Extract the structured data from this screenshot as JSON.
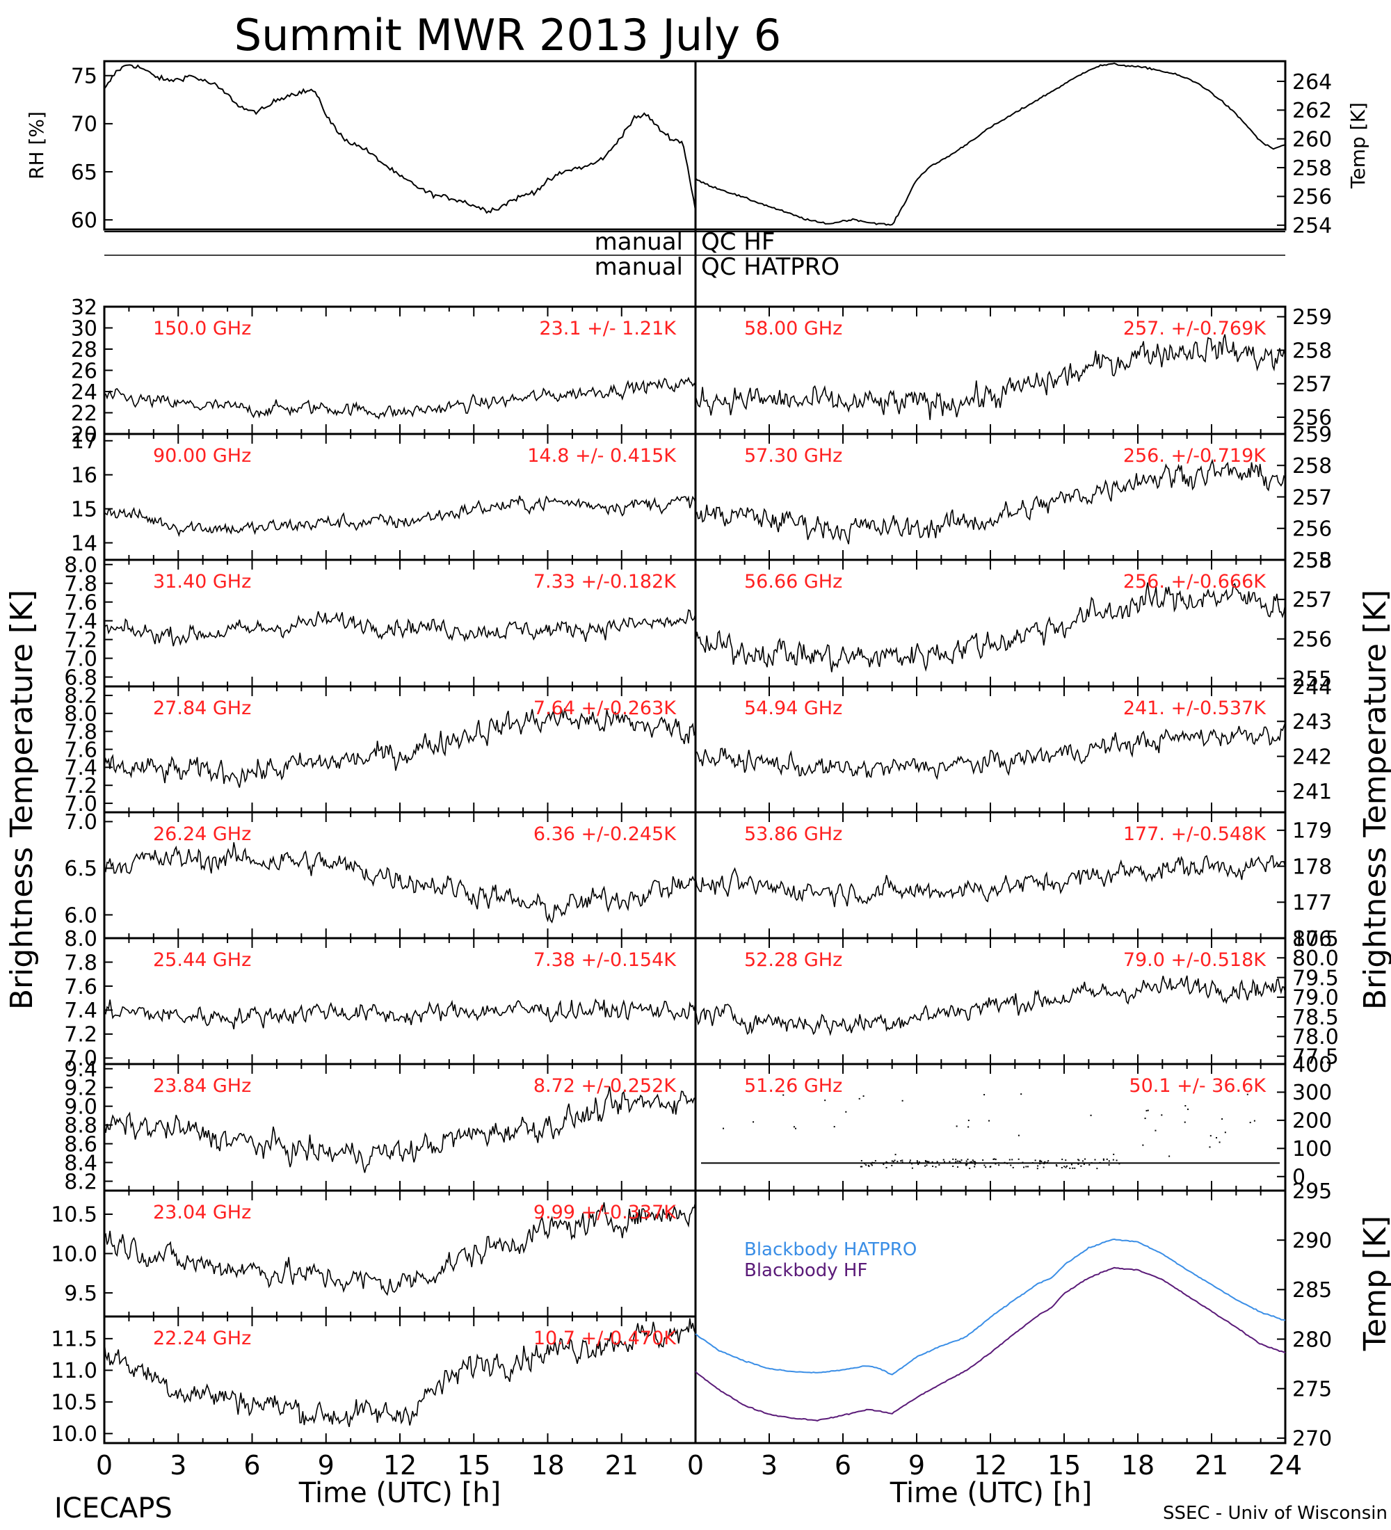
{
  "title": "Summit MWR 2013 July  6",
  "footer": {
    "left": "ICECAPS",
    "right": "SSEC - Univ of Wisconsin"
  },
  "qc_labels": {
    "left": "manual",
    "rows": [
      "QC HF",
      "QC HATPRO"
    ]
  },
  "big_labels": {
    "left": "Brightness Temperature [K]",
    "right": "Brightness Temperature [K]",
    "temp_right": "Temp [K]"
  },
  "x_axis": {
    "label": "Time (UTC) [h]",
    "ticks_left": [
      "0",
      "3",
      "6",
      "9",
      "12",
      "15",
      "18",
      "21"
    ],
    "ticks_right": [
      "0",
      "3",
      "6",
      "9",
      "12",
      "15",
      "18",
      "21",
      "24"
    ],
    "range": [
      0,
      24
    ]
  },
  "colors": {
    "annotation": "#ff2020",
    "trace": "#000000",
    "bb_hatpro": "#3a8ee6",
    "bb_hf": "#5a1a78"
  },
  "chart_data": [
    {
      "type": "line",
      "id": "rh",
      "ylabel": "RH [%]",
      "ylim": [
        59,
        76.5
      ],
      "yticks": [
        60,
        65,
        70,
        75
      ],
      "ytick_labels": [
        "60",
        "65",
        "70",
        "75"
      ],
      "x": [
        0,
        0.5,
        1,
        1.5,
        2,
        2.5,
        3,
        3.5,
        4,
        4.5,
        5,
        5.5,
        6,
        6.5,
        7,
        7.5,
        8,
        8.5,
        9,
        9.5,
        10,
        10.5,
        11,
        11.5,
        12,
        12.5,
        13,
        13.5,
        14,
        14.5,
        15,
        15.5,
        16,
        16.5,
        17,
        17.5,
        18,
        18.5,
        19,
        19.5,
        20,
        20.5,
        21,
        21.5,
        22,
        22.5,
        23,
        23.5,
        24
      ],
      "y": [
        73.5,
        75.5,
        76.2,
        75.8,
        75.0,
        74.5,
        74.6,
        75.0,
        74.5,
        74.0,
        73.0,
        71.8,
        71.2,
        71.5,
        72.5,
        73.0,
        73.3,
        73.5,
        71.0,
        69.0,
        68.0,
        67.5,
        66.5,
        65.5,
        64.5,
        63.8,
        63.0,
        62.5,
        62.3,
        62.0,
        61.5,
        61.0,
        61.2,
        62.0,
        62.5,
        63.0,
        64.0,
        64.8,
        65.3,
        65.5,
        66.0,
        67.0,
        68.8,
        70.5,
        71.0,
        69.5,
        68.5,
        68.0,
        61.0
      ]
    },
    {
      "type": "line",
      "id": "temp",
      "ylabel": "Temp [K]",
      "ylim": [
        253.7,
        265.4
      ],
      "yticks": [
        254,
        256,
        258,
        260,
        262,
        264
      ],
      "ytick_labels": [
        "254",
        "256",
        "258",
        "260",
        "262",
        "264"
      ],
      "x": [
        0,
        0.5,
        1,
        1.5,
        2,
        2.5,
        3,
        3.5,
        4,
        4.5,
        5,
        5.5,
        6,
        6.5,
        7,
        7.5,
        8,
        8.5,
        9,
        9.5,
        10,
        10.5,
        11,
        11.5,
        12,
        12.5,
        13,
        13.5,
        14,
        14.5,
        15,
        15.5,
        16,
        16.5,
        17,
        17.5,
        18,
        18.5,
        19,
        19.5,
        20,
        20.5,
        21,
        21.5,
        22,
        22.5,
        23,
        23.5,
        24
      ],
      "y": [
        257.2,
        256.8,
        256.5,
        256.2,
        255.9,
        255.6,
        255.3,
        255.0,
        254.7,
        254.4,
        254.2,
        254.1,
        254.3,
        254.4,
        254.2,
        254.1,
        254.0,
        255.5,
        257.2,
        258.0,
        258.5,
        259.0,
        259.6,
        260.2,
        260.8,
        261.3,
        261.8,
        262.3,
        262.8,
        263.3,
        263.8,
        264.3,
        264.8,
        265.1,
        265.2,
        265.1,
        265.0,
        264.9,
        264.7,
        264.5,
        264.2,
        263.8,
        263.2,
        262.5,
        261.7,
        260.8,
        259.8,
        259.3,
        259.6
      ]
    },
    {
      "type": "line",
      "id": "hf-150",
      "freq": "150.0 GHz",
      "stat": "23.1 +/-  1.21K",
      "ylim": [
        20,
        32
      ],
      "yticks": [
        20,
        22,
        24,
        26,
        28,
        30,
        32
      ],
      "ytick_labels": [
        "20",
        "22",
        "24",
        "26",
        "28",
        "30",
        "32"
      ],
      "noise": 1.2,
      "x": [
        0,
        3,
        6,
        9,
        12,
        15,
        18,
        21,
        24
      ],
      "y": [
        23.5,
        22.8,
        22.3,
        22.5,
        22.0,
        22.8,
        23.6,
        24.3,
        24.8
      ]
    },
    {
      "type": "line",
      "id": "hf-90",
      "freq": "90.00 GHz",
      "stat": "14.8 +/- 0.415K",
      "ylim": [
        13.5,
        17.2
      ],
      "yticks": [
        14,
        15,
        16,
        17
      ],
      "ytick_labels": [
        "14",
        "15",
        "16",
        "17"
      ],
      "noise": 0.4,
      "x": [
        0,
        3,
        6,
        9,
        12,
        15,
        18,
        21,
        24
      ],
      "y": [
        15.0,
        14.5,
        14.4,
        14.6,
        14.6,
        15.0,
        15.2,
        15.1,
        15.2
      ]
    },
    {
      "type": "line",
      "id": "hf-31",
      "freq": "31.40 GHz",
      "stat": "7.33 +/-0.182K",
      "ylim": [
        6.7,
        8.05
      ],
      "yticks": [
        6.8,
        7.0,
        7.2,
        7.4,
        7.6,
        7.8,
        8.0
      ],
      "ytick_labels": [
        "6.8",
        "7.0",
        "7.2",
        "7.4",
        "7.6",
        "7.8",
        "8.0"
      ],
      "noise": 0.18,
      "x": [
        0,
        3,
        6,
        9,
        12,
        15,
        18,
        21,
        24
      ],
      "y": [
        7.3,
        7.25,
        7.3,
        7.4,
        7.35,
        7.3,
        7.3,
        7.35,
        7.4
      ]
    },
    {
      "type": "line",
      "id": "hf-27",
      "freq": "27.84 GHz",
      "stat": "7.64 +/-0.263K",
      "ylim": [
        6.9,
        8.3
      ],
      "yticks": [
        7.0,
        7.2,
        7.4,
        7.6,
        7.8,
        8.0,
        8.2
      ],
      "ytick_labels": [
        "7.0",
        "7.2",
        "7.4",
        "7.6",
        "7.8",
        "8.0",
        "8.2"
      ],
      "noise": 0.26,
      "x": [
        0,
        3,
        6,
        9,
        12,
        15,
        18,
        21,
        24
      ],
      "y": [
        7.4,
        7.35,
        7.35,
        7.45,
        7.55,
        7.8,
        7.95,
        7.9,
        7.8
      ]
    },
    {
      "type": "line",
      "id": "hf-26",
      "freq": "26.24 GHz",
      "stat": "6.36 +/-0.245K",
      "ylim": [
        5.75,
        7.1
      ],
      "yticks": [
        6.0,
        6.5,
        7.0
      ],
      "ytick_labels": [
        "6.0",
        "6.5",
        "7.0"
      ],
      "noise": 0.24,
      "x": [
        0,
        3,
        6,
        9,
        12,
        15,
        18,
        21,
        24
      ],
      "y": [
        6.55,
        6.6,
        6.6,
        6.55,
        6.4,
        6.25,
        6.05,
        6.2,
        6.35
      ]
    },
    {
      "type": "line",
      "id": "hf-25",
      "freq": "25.44 GHz",
      "stat": "7.38 +/-0.154K",
      "ylim": [
        6.95,
        8.0
      ],
      "yticks": [
        7.0,
        7.2,
        7.4,
        7.6,
        7.8,
        8.0
      ],
      "ytick_labels": [
        "7.0",
        "7.2",
        "7.4",
        "7.6",
        "7.8",
        "8.0"
      ],
      "noise": 0.15,
      "x": [
        0,
        3,
        6,
        9,
        12,
        15,
        18,
        21,
        24
      ],
      "y": [
        7.4,
        7.35,
        7.35,
        7.4,
        7.35,
        7.4,
        7.4,
        7.4,
        7.4
      ]
    },
    {
      "type": "line",
      "id": "hf-23-84",
      "freq": "23.84 GHz",
      "stat": "8.72 +/-0.252K",
      "ylim": [
        8.1,
        9.45
      ],
      "yticks": [
        8.2,
        8.4,
        8.6,
        8.8,
        9.0,
        9.2,
        9.4
      ],
      "ytick_labels": [
        "8.2",
        "8.4",
        "8.6",
        "8.8",
        "9.0",
        "9.2",
        "9.4"
      ],
      "noise": 0.25,
      "x": [
        0,
        3,
        6,
        9,
        12,
        15,
        18,
        21,
        24
      ],
      "y": [
        8.8,
        8.75,
        8.6,
        8.5,
        8.5,
        8.7,
        8.8,
        9.0,
        9.1
      ]
    },
    {
      "type": "line",
      "id": "hf-23-04",
      "freq": "23.04 GHz",
      "stat": "9.99 +/-0.337K",
      "ylim": [
        9.2,
        10.8
      ],
      "yticks": [
        9.5,
        10.0,
        10.5
      ],
      "ytick_labels": [
        "9.5",
        "10.0",
        "10.5"
      ],
      "noise": 0.3,
      "x": [
        0,
        3,
        6,
        9,
        12,
        15,
        18,
        21,
        24
      ],
      "y": [
        10.2,
        9.9,
        9.8,
        9.7,
        9.6,
        10.0,
        10.3,
        10.45,
        10.55
      ]
    },
    {
      "type": "line",
      "id": "hf-22-24",
      "freq": "22.24 GHz",
      "stat": "10.7 +/-0.470K",
      "ylim": [
        9.85,
        11.85
      ],
      "yticks": [
        10.0,
        10.5,
        11.0,
        11.5
      ],
      "ytick_labels": [
        "10.0",
        "10.5",
        "11.0",
        "11.5"
      ],
      "noise": 0.4,
      "x": [
        0,
        3,
        6,
        9,
        12,
        15,
        18,
        21,
        24
      ],
      "y": [
        11.3,
        10.7,
        10.5,
        10.3,
        10.3,
        11.1,
        11.3,
        11.5,
        11.6
      ]
    },
    {
      "type": "line",
      "id": "hatpro-58",
      "freq": "58.00 GHz",
      "stat": "257. +/-0.769K",
      "ylim": [
        255.5,
        259.3
      ],
      "yticks": [
        256,
        257,
        258,
        259
      ],
      "ytick_labels": [
        "256",
        "257",
        "258",
        "259"
      ],
      "noise": 0.75,
      "x": [
        0,
        3,
        6,
        9,
        12,
        15,
        18,
        21,
        24
      ],
      "y": [
        256.6,
        256.5,
        256.4,
        256.4,
        256.6,
        257.2,
        257.9,
        258.1,
        257.7
      ]
    },
    {
      "type": "line",
      "id": "hatpro-57-30",
      "freq": "57.30 GHz",
      "stat": "256. +/-0.719K",
      "ylim": [
        255,
        259
      ],
      "yticks": [
        255,
        256,
        257,
        258,
        259
      ],
      "ytick_labels": [
        "255",
        "256",
        "257",
        "258",
        "259"
      ],
      "noise": 0.7,
      "x": [
        0,
        3,
        6,
        9,
        12,
        15,
        18,
        21,
        24
      ],
      "y": [
        256.5,
        256.3,
        256.0,
        256.0,
        256.3,
        256.9,
        257.6,
        257.8,
        257.6
      ]
    },
    {
      "type": "line",
      "id": "hatpro-56-66",
      "freq": "56.66 GHz",
      "stat": "256. +/-0.666K",
      "ylim": [
        254.8,
        258
      ],
      "yticks": [
        255,
        256,
        257,
        258
      ],
      "ytick_labels": [
        "255",
        "256",
        "257",
        "258"
      ],
      "noise": 0.65,
      "x": [
        0,
        3,
        6,
        9,
        12,
        15,
        18,
        21,
        24
      ],
      "y": [
        255.8,
        255.7,
        255.5,
        255.6,
        255.9,
        256.4,
        256.9,
        257.1,
        256.9
      ]
    },
    {
      "type": "line",
      "id": "hatpro-54-94",
      "freq": "54.94 GHz",
      "stat": "241. +/-0.537K",
      "ylim": [
        240.4,
        244
      ],
      "yticks": [
        241,
        242,
        243,
        244
      ],
      "ytick_labels": [
        "241",
        "242",
        "243",
        "244"
      ],
      "noise": 0.55,
      "x": [
        0,
        3,
        6,
        9,
        12,
        15,
        18,
        21,
        24
      ],
      "y": [
        242.0,
        241.8,
        241.6,
        241.7,
        241.8,
        242.1,
        242.4,
        242.6,
        242.7
      ]
    },
    {
      "type": "line",
      "id": "hatpro-53-86",
      "freq": "53.86 GHz",
      "stat": "177. +/-0.548K",
      "ylim": [
        176,
        179.5
      ],
      "yticks": [
        176,
        177,
        178,
        179
      ],
      "ytick_labels": [
        "176",
        "177",
        "178",
        "179"
      ],
      "noise": 0.55,
      "x": [
        0,
        3,
        6,
        9,
        12,
        15,
        18,
        21,
        24
      ],
      "y": [
        177.5,
        177.4,
        177.3,
        177.3,
        177.4,
        177.6,
        177.9,
        178.0,
        178.0
      ]
    },
    {
      "type": "line",
      "id": "hatpro-52-28",
      "freq": "52.28 GHz",
      "stat": "79.0 +/-0.518K",
      "ylim": [
        77.3,
        80.5
      ],
      "yticks": [
        77.5,
        78.0,
        78.5,
        79.0,
        79.5,
        80.0,
        80.5
      ],
      "ytick_labels": [
        "77.5",
        "78.0",
        "78.5",
        "79.0",
        "79.5",
        "80.0",
        "80.5"
      ],
      "noise": 0.5,
      "x": [
        0,
        3,
        6,
        9,
        12,
        15,
        18,
        21,
        24
      ],
      "y": [
        78.6,
        78.4,
        78.3,
        78.5,
        78.8,
        79.0,
        79.2,
        79.3,
        79.2
      ]
    },
    {
      "type": "line",
      "id": "hatpro-51-26",
      "freq": "51.26 GHz",
      "stat": "50.1 +/-  36.6K",
      "ylim": [
        -50,
        400
      ],
      "yticks": [
        0,
        100,
        200,
        300,
        400
      ],
      "ytick_labels": [
        "0",
        "100",
        "200",
        "300",
        "400"
      ],
      "noise": 3,
      "x": [
        0,
        24
      ],
      "y": [
        48,
        48
      ]
    },
    {
      "type": "line",
      "id": "blackbody",
      "ylabel": "Temp [K]",
      "ylim": [
        269.5,
        295
      ],
      "yticks": [
        270,
        275,
        280,
        285,
        290,
        295
      ],
      "ytick_labels": [
        "270",
        "275",
        "280",
        "285",
        "290",
        "295"
      ],
      "series": [
        {
          "name": "Blackbody HATPRO",
          "x": [
            0,
            1,
            2,
            3,
            4,
            5,
            6,
            7,
            7.5,
            8,
            9,
            10,
            11,
            12,
            13,
            14,
            14.5,
            15,
            16,
            17,
            18,
            19,
            20,
            21,
            22,
            23,
            24
          ],
          "y": [
            280.5,
            278.8,
            277.8,
            277.0,
            276.7,
            276.6,
            276.9,
            277.3,
            277.0,
            276.4,
            278.2,
            279.3,
            280.2,
            282.2,
            284.0,
            285.7,
            286.2,
            287.5,
            289.2,
            290.1,
            289.8,
            288.6,
            287.0,
            285.5,
            284.0,
            282.7,
            281.9
          ]
        },
        {
          "name": "Blackbody HF",
          "x": [
            0,
            1,
            2,
            3,
            4,
            5,
            6,
            7,
            7.5,
            8,
            9,
            10,
            11,
            12,
            13,
            14,
            14.5,
            15,
            16,
            17,
            18,
            19,
            20,
            21,
            22,
            23,
            24
          ],
          "y": [
            276.7,
            274.8,
            273.3,
            272.4,
            272.0,
            271.8,
            272.3,
            272.9,
            272.7,
            272.5,
            274.1,
            275.5,
            276.8,
            278.6,
            280.6,
            282.5,
            283.2,
            284.6,
            286.2,
            287.2,
            287.0,
            286.0,
            284.4,
            282.8,
            281.2,
            279.5,
            278.6
          ]
        }
      ]
    }
  ]
}
